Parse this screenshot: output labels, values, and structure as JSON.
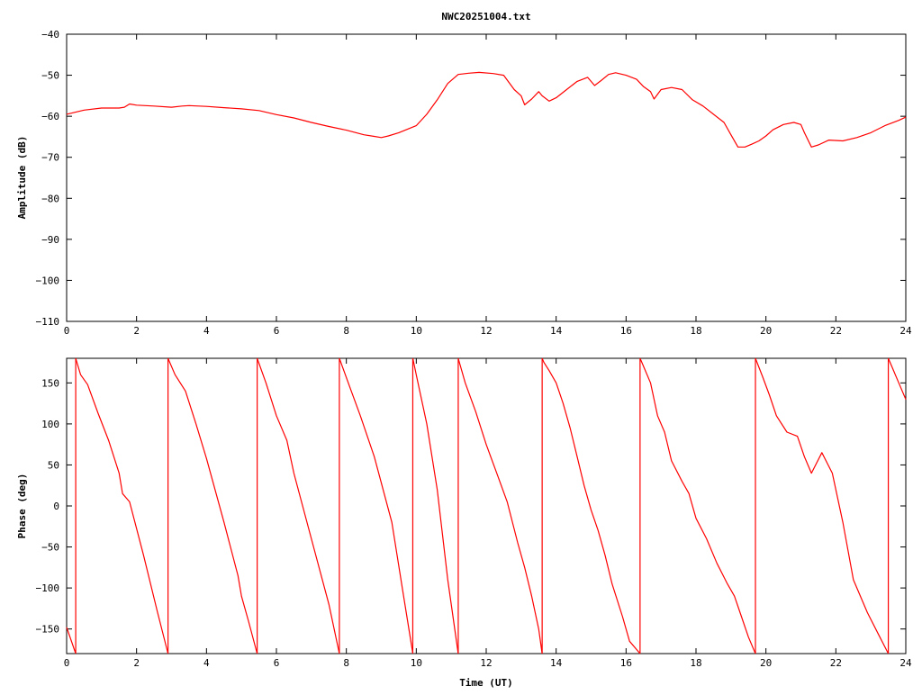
{
  "title": "NWC20251004.txt",
  "chart_data": [
    {
      "type": "line",
      "title": "NWC20251004.txt",
      "xlabel": "",
      "ylabel": "Amplitude (dB)",
      "xlim": [
        0,
        24
      ],
      "ylim": [
        -110,
        -40
      ],
      "x_ticks": [
        0,
        2,
        4,
        6,
        8,
        10,
        12,
        14,
        16,
        18,
        20,
        22,
        24
      ],
      "y_ticks": [
        -110,
        -100,
        -90,
        -80,
        -70,
        -60,
        -50,
        -40
      ],
      "grid": false,
      "series": [
        {
          "color": "#ff0000",
          "x": [
            0,
            0.5,
            1.0,
            1.5,
            1.65,
            1.8,
            2.0,
            2.5,
            3.0,
            3.3,
            3.5,
            4.0,
            4.5,
            5.0,
            5.5,
            6.0,
            6.5,
            7.0,
            7.5,
            8.0,
            8.5,
            8.8,
            9.0,
            9.2,
            9.5,
            10.0,
            10.3,
            10.6,
            10.9,
            11.2,
            11.5,
            11.8,
            12.2,
            12.5,
            12.8,
            13.0,
            13.1,
            13.3,
            13.5,
            13.6,
            13.8,
            14.0,
            14.3,
            14.6,
            14.9,
            15.1,
            15.3,
            15.5,
            15.7,
            16.0,
            16.3,
            16.5,
            16.7,
            16.8,
            17.0,
            17.3,
            17.6,
            17.9,
            18.2,
            18.5,
            18.8,
            19.0,
            19.2,
            19.4,
            19.6,
            19.8,
            20.0,
            20.2,
            20.5,
            20.8,
            21.0,
            21.1,
            21.3,
            21.5,
            21.8,
            22.2,
            22.6,
            23.0,
            23.4,
            23.8,
            24.0
          ],
          "y": [
            -59.5,
            -58.5,
            -58.0,
            -58.0,
            -57.8,
            -57.0,
            -57.3,
            -57.5,
            -57.8,
            -57.5,
            -57.4,
            -57.6,
            -57.9,
            -58.2,
            -58.6,
            -59.6,
            -60.4,
            -61.5,
            -62.5,
            -63.4,
            -64.5,
            -64.9,
            -65.2,
            -64.8,
            -64.0,
            -62.3,
            -59.5,
            -56.0,
            -52.0,
            -49.8,
            -49.5,
            -49.3,
            -49.6,
            -50.0,
            -53.5,
            -55.0,
            -57.2,
            -55.8,
            -54.0,
            -55.0,
            -56.3,
            -55.5,
            -53.5,
            -51.5,
            -50.5,
            -52.5,
            -51.2,
            -49.8,
            -49.4,
            -50.0,
            -51.0,
            -52.8,
            -54.0,
            -55.8,
            -53.5,
            -53.0,
            -53.5,
            -56.0,
            -57.5,
            -59.5,
            -61.5,
            -64.5,
            -67.5,
            -67.5,
            -66.8,
            -66.0,
            -64.8,
            -63.3,
            -62.0,
            -61.5,
            -62.0,
            -64.0,
            -67.5,
            -67.0,
            -65.8,
            -66.0,
            -65.2,
            -64.0,
            -62.3,
            -61.0,
            -60.2
          ]
        }
      ]
    },
    {
      "type": "line",
      "title": "",
      "xlabel": "Time (UT)",
      "ylabel": "Phase (deg)",
      "xlim": [
        0,
        24
      ],
      "ylim": [
        -180,
        180
      ],
      "x_ticks": [
        0,
        2,
        4,
        6,
        8,
        10,
        12,
        14,
        16,
        18,
        20,
        22,
        24
      ],
      "y_ticks": [
        -150,
        -100,
        -50,
        0,
        50,
        100,
        150
      ],
      "grid": false,
      "series": [
        {
          "color": "#ff0000",
          "segments": [
            {
              "x": [
                0.0,
                0.26
              ],
              "y": [
                -148,
                -180
              ]
            },
            {
              "x": [
                0.26,
                0.4,
                0.6,
                0.9,
                1.2,
                1.5,
                1.6,
                1.7,
                1.8,
                2.2,
                2.6,
                2.9
              ],
              "y": [
                180,
                160,
                148,
                113,
                80,
                40,
                15,
                10,
                5,
                -60,
                -130,
                -180
              ]
            },
            {
              "x": [
                2.9,
                3.1,
                3.4,
                3.7,
                4.0,
                4.5,
                4.9,
                5.0,
                5.2,
                5.45
              ],
              "y": [
                180,
                160,
                140,
                100,
                58,
                -20,
                -85,
                -110,
                -140,
                -180
              ]
            },
            {
              "x": [
                5.45,
                5.7,
                6.0,
                6.3,
                6.5,
                7.0,
                7.5,
                7.8
              ],
              "y": [
                180,
                150,
                110,
                80,
                40,
                -40,
                -120,
                -180
              ]
            },
            {
              "x": [
                7.8,
                8.1,
                8.4,
                8.8,
                9.3,
                9.6,
                9.9
              ],
              "y": [
                180,
                145,
                110,
                60,
                -20,
                -100,
                -180
              ]
            },
            {
              "x": [
                9.9,
                10.0,
                10.3,
                10.6,
                10.9,
                11.2
              ],
              "y": [
                180,
                160,
                100,
                20,
                -90,
                -180
              ]
            },
            {
              "x": [
                11.2,
                11.4,
                11.7,
                12.0,
                12.3,
                12.6,
                12.9,
                13.1,
                13.3,
                13.5,
                13.6
              ],
              "y": [
                180,
                150,
                115,
                75,
                40,
                5,
                -45,
                -75,
                -110,
                -150,
                -180
              ]
            },
            {
              "x": [
                13.6,
                13.65,
                13.8,
                14.0,
                14.2,
                14.4,
                14.6,
                14.8,
                15.0,
                15.2,
                15.4,
                15.6,
                15.9,
                16.1,
                16.4
              ],
              "y": [
                180,
                175,
                165,
                150,
                125,
                95,
                60,
                25,
                -5,
                -30,
                -60,
                -95,
                -135,
                -165,
                -180
              ]
            },
            {
              "x": [
                16.4,
                16.5,
                16.7,
                16.9,
                17.1,
                17.3,
                17.6,
                17.8,
                18.0,
                18.3,
                18.6,
                18.9,
                19.1,
                19.3,
                19.5,
                19.7
              ],
              "y": [
                180,
                170,
                150,
                110,
                90,
                55,
                30,
                15,
                -15,
                -40,
                -70,
                -95,
                -110,
                -135,
                -160,
                -180
              ]
            },
            {
              "x": [
                19.7,
                19.9,
                20.1,
                20.3,
                20.6,
                20.9,
                21.1,
                21.3,
                21.6,
                21.9,
                22.2,
                22.5,
                22.9,
                23.2,
                23.5
              ],
              "y": [
                180,
                158,
                135,
                110,
                90,
                85,
                60,
                40,
                65,
                40,
                -20,
                -90,
                -130,
                -155,
                -180
              ]
            },
            {
              "x": [
                23.5,
                23.6,
                23.8,
                24.0
              ],
              "y": [
                180,
                170,
                150,
                130
              ]
            }
          ]
        }
      ]
    }
  ]
}
